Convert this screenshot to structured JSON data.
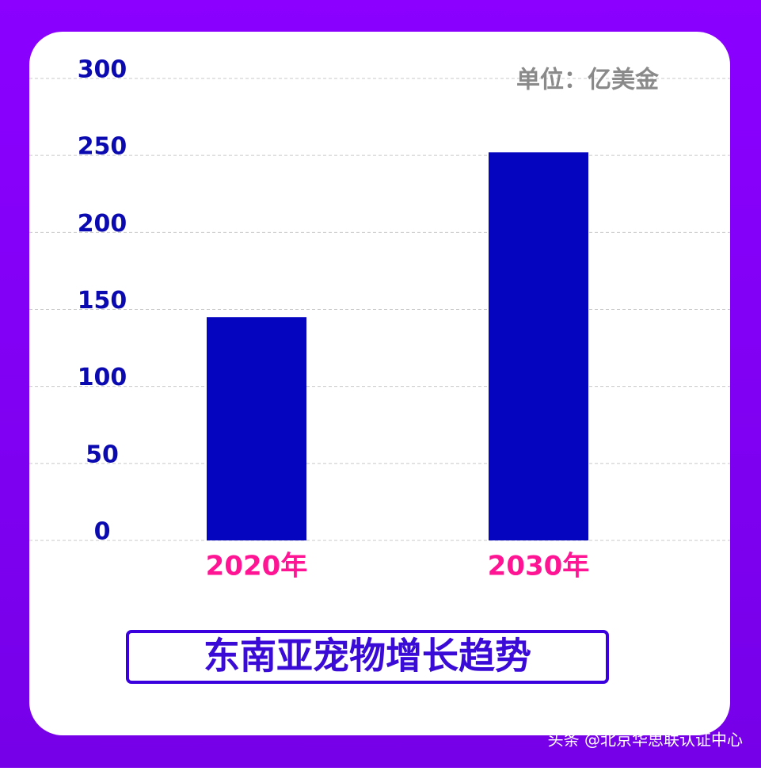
{
  "chart_data": {
    "type": "bar",
    "title": "东南亚宠物增长趋势",
    "subtitle": "单位：亿美金",
    "categories": [
      "2020年",
      "2030年"
    ],
    "values": [
      145,
      252
    ],
    "color": "#0505c0",
    "ylim": [
      0,
      300
    ],
    "yticks": [
      0,
      50,
      100,
      150,
      200,
      250,
      300
    ],
    "grid": true
  },
  "watermark": "头条 @北京华思联认证中心"
}
